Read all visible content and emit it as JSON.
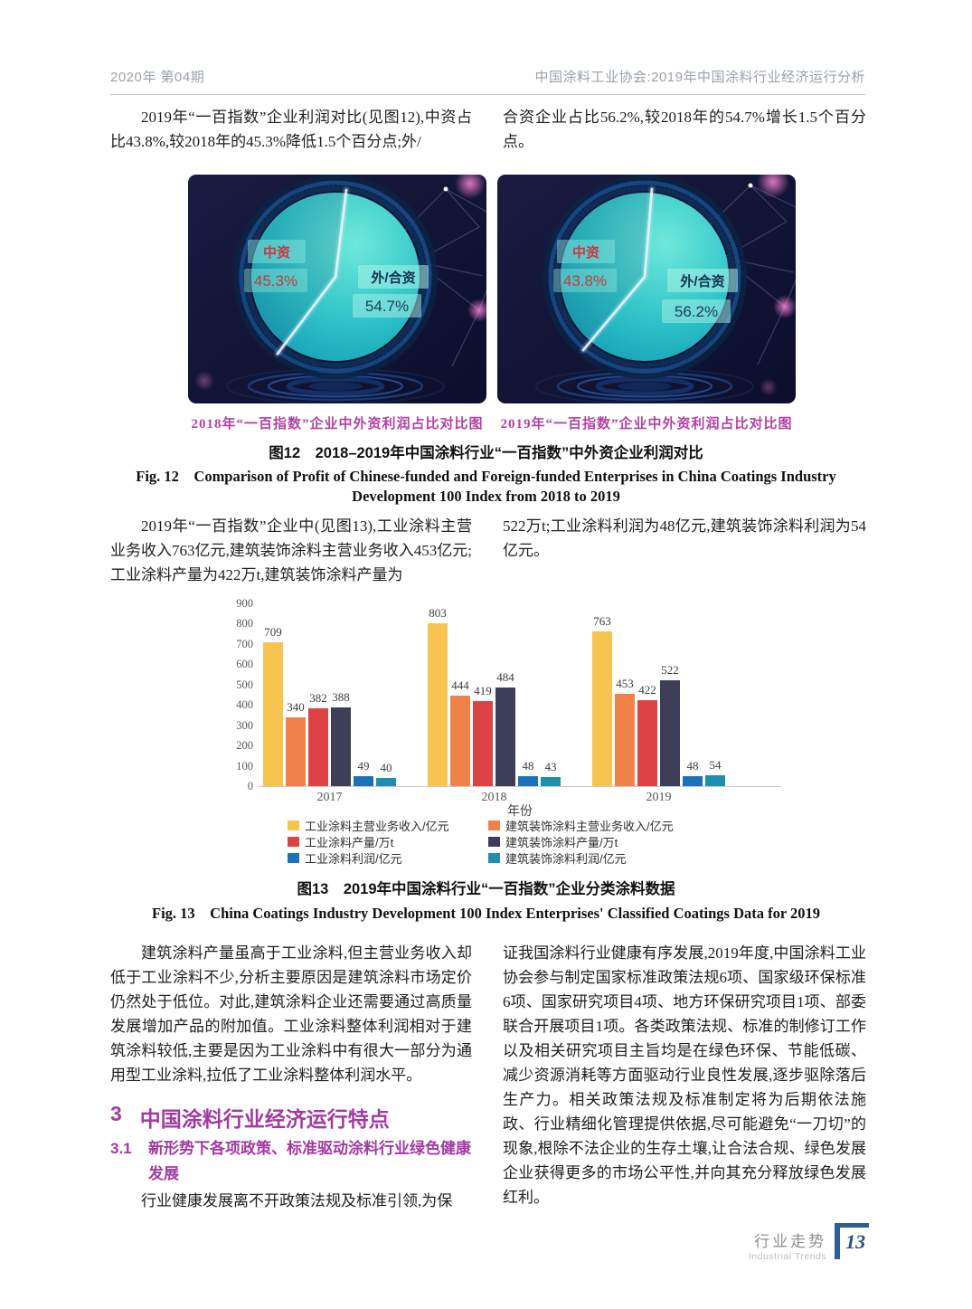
{
  "header": {
    "issue": "2020年  第04期",
    "running_title": "中国涂料工业协会:2019年中国涂料行业经济运行分析"
  },
  "body": {
    "p1_left": "2019年“一百指数”企业利润对比(见图12),中资占比43.8%,较2018年的45.3%降低1.5个百分点;外/",
    "p1_right": "合资企业占比56.2%,较2018年的54.7%增长1.5个百分点。",
    "p2_left": "2019年“一百指数”企业中(见图13),工业涂料主营业务收入763亿元,建筑装饰涂料主营业务收入453亿元;工业涂料产量为422万t,建筑装饰涂料产量为",
    "p2_right": "522万t;工业涂料利润为48亿元,建筑装饰涂料利润为54亿元。",
    "p3_left": "建筑涂料产量虽高于工业涂料,但主营业务收入却低于工业涂料不少,分析主要原因是建筑涂料市场定价仍然处于低位。对此,建筑涂料企业还需要通过高质量发展增加产品的附加值。工业涂料整体利润相对于建筑涂料较低,主要是因为工业涂料中有很大一部分为通用型工业涂料,拉低了工业涂料整体利润水平。",
    "section3_num": "3",
    "section3_title": "中国涂料行业经济运行特点",
    "section31_num": "3.1",
    "section31_title": "新形势下各项政策、标准驱动涂料行业绿色健康发展",
    "p4_left": "行业健康发展离不开政策法规及标准引领,为保",
    "p4_right": "证我国涂料行业健康有序发展,2019年度,中国涂料工业协会参与制定国家标准政策法规6项、国家级环保标准6项、国家研究项目4项、地方环保研究项目1项、部委联合开展项目1项。各类政策法规、标准的制修订工作以及相关研究项目主旨均是在绿色环保、节能低碳、减少资源消耗等方面驱动行业良性发展,逐步驱除落后生产力。相关政策法规及标准制定将为后期依法施政、行业精细化管理提供依据,尽可能避免“一刀切”的现象,根除不法企业的生存土壤,让合法合规、绿色发展企业获得更多的市场公平性,并向其充分释放绿色发展红利。"
  },
  "fig12": {
    "caption_zh": "图12　2018–2019年中国涂料行业“一百指数”中外资企业利润对比",
    "caption_en_1": "Fig. 12　Comparison of Profit of Chinese-funded and Foreign-funded Enterprises in China Coatings Industry",
    "caption_en_2": "Development 100 Index from 2018 to 2019"
  },
  "fig13": {
    "caption_zh": "图13　2019年中国涂料行业“一百指数”企业分类涂料数据",
    "caption_en": "Fig. 13　China Coatings Industry Development 100 Index Enterprises' Classified Coatings Data for 2019"
  },
  "footer": {
    "section_zh": "行业走势",
    "section_en": "Industrial Trends",
    "page_number": "13"
  },
  "colors": {
    "heading_purple": "#a23aa2",
    "pie_caption_purple": "#b341a3",
    "header_gray": "#9aa2ac",
    "footer_blue": "#2e5f96",
    "pie_teal": "#2fc3c8",
    "pie_label_red": "#cf3540",
    "pie_label_navy": "#14304f"
  },
  "chart_data": [
    {
      "type": "pie",
      "title": "2018年“一百指数”企业中外资利润占比对比图",
      "labels": [
        "中资",
        "外/合资"
      ],
      "values": [
        45.3,
        54.7
      ],
      "value_labels": [
        "45.3%",
        "54.7%"
      ],
      "unit": "%"
    },
    {
      "type": "pie",
      "title": "2019年“一百指数”企业中外资利润占比对比图",
      "labels": [
        "中资",
        "外/合资"
      ],
      "values": [
        43.8,
        56.2
      ],
      "value_labels": [
        "43.8%",
        "56.2%"
      ],
      "unit": "%"
    },
    {
      "type": "bar",
      "categories": [
        "2017",
        "2018",
        "2019"
      ],
      "series": [
        {
          "name": "工业涂料主营业务收入/亿元",
          "color": "#f6c44f",
          "values": [
            709,
            803,
            763
          ]
        },
        {
          "name": "建筑装饰涂料主营业务收入/亿元",
          "color": "#f08148",
          "values": [
            340,
            444,
            453
          ]
        },
        {
          "name": "工业涂料产量/万t",
          "color": "#dd4345",
          "values": [
            382,
            419,
            422
          ]
        },
        {
          "name": "建筑装饰涂料产量/万t",
          "color": "#3d3f59",
          "values": [
            388,
            484,
            522
          ]
        },
        {
          "name": "工业涂料利润/亿元",
          "color": "#1c72b8",
          "values": [
            49,
            48,
            48
          ]
        },
        {
          "name": "建筑装饰涂料利润/亿元",
          "color": "#1f8fb0",
          "values": [
            40,
            43,
            54
          ]
        }
      ],
      "legend_columns": [
        [
          0,
          2,
          4
        ],
        [
          1,
          3,
          5
        ]
      ],
      "xlabel": "年份",
      "ylabel": "",
      "ylim": [
        0,
        900
      ],
      "ytick_step": 100,
      "grid": false,
      "legend_position": "bottom"
    }
  ]
}
